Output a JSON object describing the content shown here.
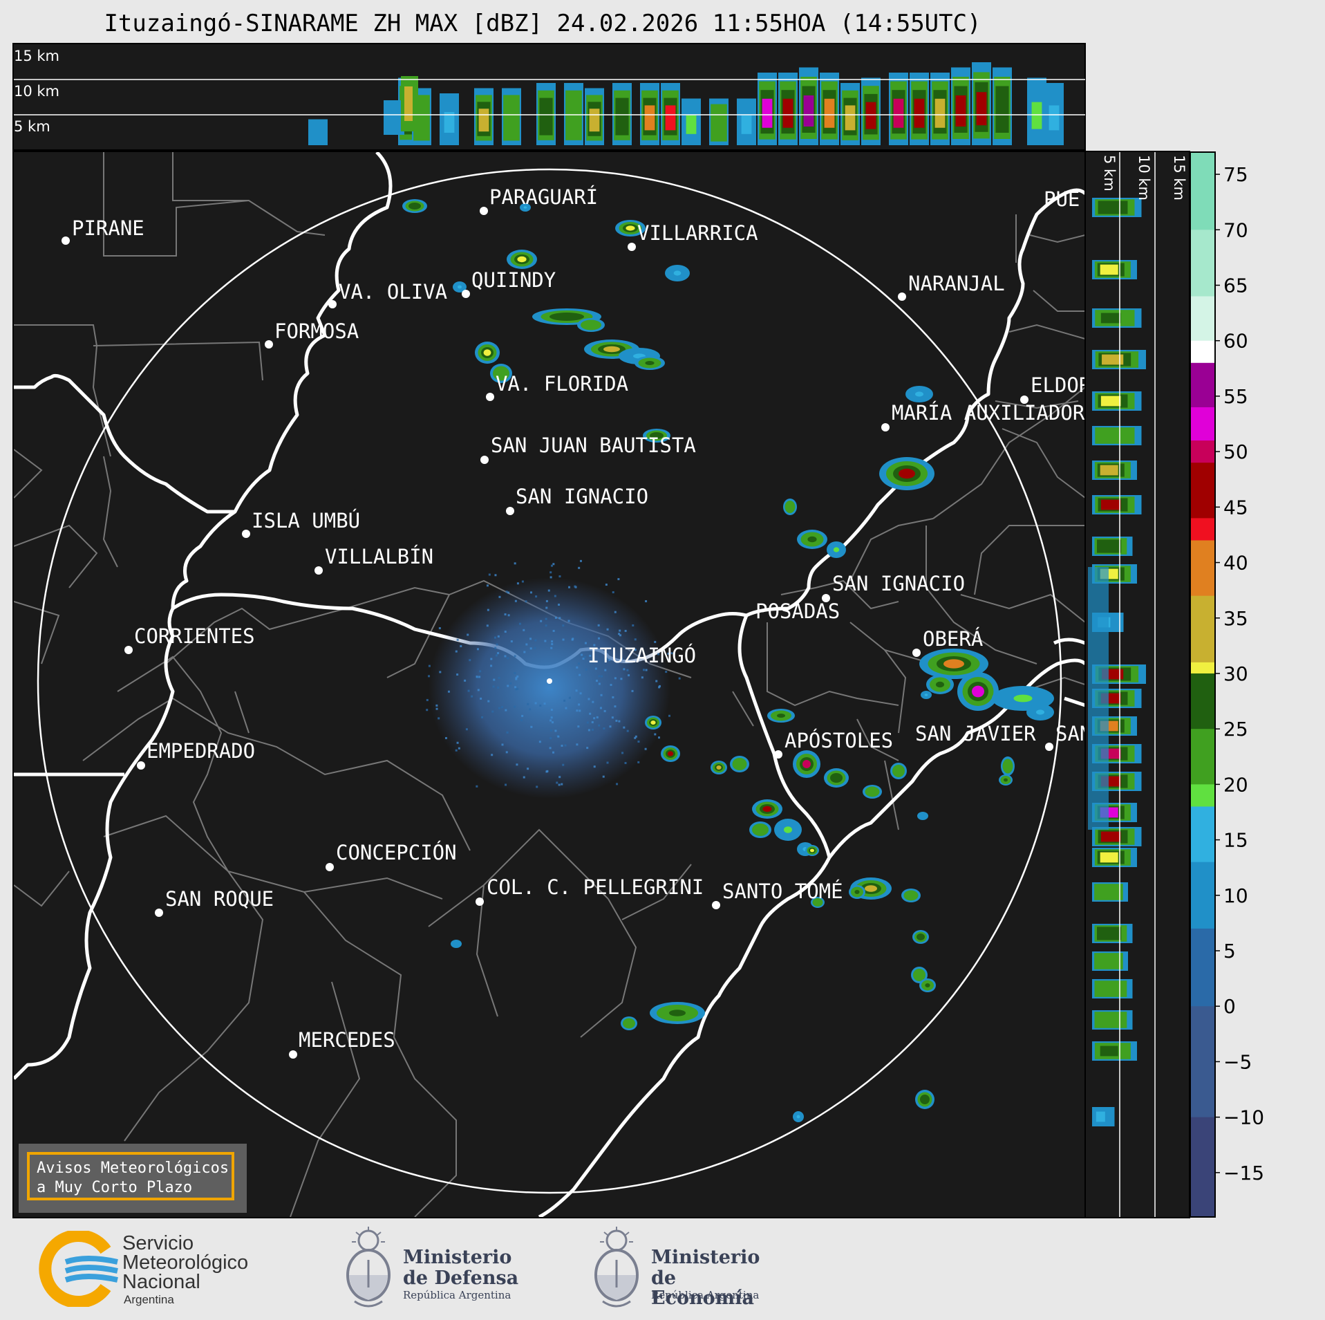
{
  "title": "Ituzaingó-SINARAME ZH MAX [dBZ] 24.02.2026 11:55HOA (14:55UTC)",
  "top_panel": {
    "height_labels": [
      "15 km",
      "10 km",
      "5 km"
    ]
  },
  "side_panel": {
    "height_labels": [
      "5 km",
      "10 km",
      "15 km"
    ]
  },
  "colorbar": {
    "ticks": [
      "75",
      "70",
      "65",
      "60",
      "55",
      "50",
      "45",
      "40",
      "35",
      "30",
      "25",
      "20",
      "15",
      "10",
      "5",
      "0",
      "−5",
      "−10",
      "−15"
    ],
    "stops": [
      {
        "value": 77,
        "color": "#7fdcb8"
      },
      {
        "value": 70,
        "color": "#a6e8cc"
      },
      {
        "value": 64,
        "color": "#d4f4e6"
      },
      {
        "value": 60,
        "color": "#ffffff"
      },
      {
        "value": 58,
        "color": "#9a0094"
      },
      {
        "value": 54,
        "color": "#e000d8"
      },
      {
        "value": 51,
        "color": "#c8005a"
      },
      {
        "value": 49,
        "color": "#a00000"
      },
      {
        "value": 44,
        "color": "#f01020"
      },
      {
        "value": 42,
        "color": "#e08020"
      },
      {
        "value": 37,
        "color": "#c8b030"
      },
      {
        "value": 31,
        "color": "#f0f040"
      },
      {
        "value": 30,
        "color": "#206010"
      },
      {
        "value": 25,
        "color": "#40a020"
      },
      {
        "value": 20,
        "color": "#60e040"
      },
      {
        "value": 18,
        "color": "#30b0e0"
      },
      {
        "value": 13,
        "color": "#2090c8"
      },
      {
        "value": 7,
        "color": "#2a6aa8"
      },
      {
        "value": 0,
        "color": "#3a5a90"
      },
      {
        "value": -10,
        "color": "#3a4478"
      },
      {
        "value": -19,
        "color": "#3c3868"
      }
    ]
  },
  "cities": [
    {
      "name": "PIRANE",
      "id": "pirane"
    },
    {
      "name": "PARAGUARÍ",
      "id": "paraguari"
    },
    {
      "name": "VILLARRICA",
      "id": "villarrica"
    },
    {
      "name": "QUIINDY",
      "id": "quiindy"
    },
    {
      "name": "VA. OLIVA",
      "id": "va-oliva"
    },
    {
      "name": "FORMOSA",
      "id": "formosa"
    },
    {
      "name": "NARANJAL",
      "id": "naranjal"
    },
    {
      "name": "PUE",
      "id": "puerto"
    },
    {
      "name": "VA. FLORIDA",
      "id": "va-florida"
    },
    {
      "name": "ELDOR",
      "id": "eldorado"
    },
    {
      "name": "MARÍA AUXILIADOR",
      "id": "maria-auxiliadora"
    },
    {
      "name": "SAN JUAN BAUTISTA",
      "id": "san-juan-bautista"
    },
    {
      "name": "SAN IGNACIO",
      "id": "san-ignacio-py"
    },
    {
      "name": "ISLA UMBÚ",
      "id": "isla-umbu"
    },
    {
      "name": "VILLALBÍN",
      "id": "villalbin"
    },
    {
      "name": "SAN IGNACIO",
      "id": "san-ignacio-ar"
    },
    {
      "name": "POSADAS",
      "id": "posadas"
    },
    {
      "name": "CORRIENTES",
      "id": "corrientes"
    },
    {
      "name": "ITUZAINGÓ",
      "id": "ituzaingo"
    },
    {
      "name": "OBERÁ",
      "id": "obera"
    },
    {
      "name": "EMPEDRADO",
      "id": "empedrado"
    },
    {
      "name": "APÓSTOLES",
      "id": "apostoles"
    },
    {
      "name": "SAN JAVIER",
      "id": "san-javier"
    },
    {
      "name": "SAN",
      "id": "san-vicente"
    },
    {
      "name": "CONCEPCIÓN",
      "id": "concepcion"
    },
    {
      "name": "COL. C. PELLEGRINI",
      "id": "col-pellegrini"
    },
    {
      "name": "SANTO TOMÉ",
      "id": "santo-tome"
    },
    {
      "name": "SAN ROQUE",
      "id": "san-roque"
    },
    {
      "name": "MERCEDES",
      "id": "mercedes"
    }
  ],
  "warning_box": {
    "line1": "Avisos Meteorológicos",
    "line2": "a Muy Corto Plazo"
  },
  "logos": {
    "smn": {
      "line1": "Servicio",
      "line2": "Meteorológico",
      "line3": "Nacional",
      "sub": "Argentina"
    },
    "defensa": {
      "line1": "Ministerio",
      "line2": "de Defensa",
      "sub": "República Argentina"
    },
    "economia": {
      "line1": "Ministerio",
      "line2": "de Economía",
      "sub": "República Argentina"
    }
  },
  "colors": {
    "map_bg": "#1a1a1a",
    "range_ring": "#ffffff",
    "border_major": "#ffffff",
    "border_minor": "#777777",
    "warning_border": "#f0a500"
  }
}
